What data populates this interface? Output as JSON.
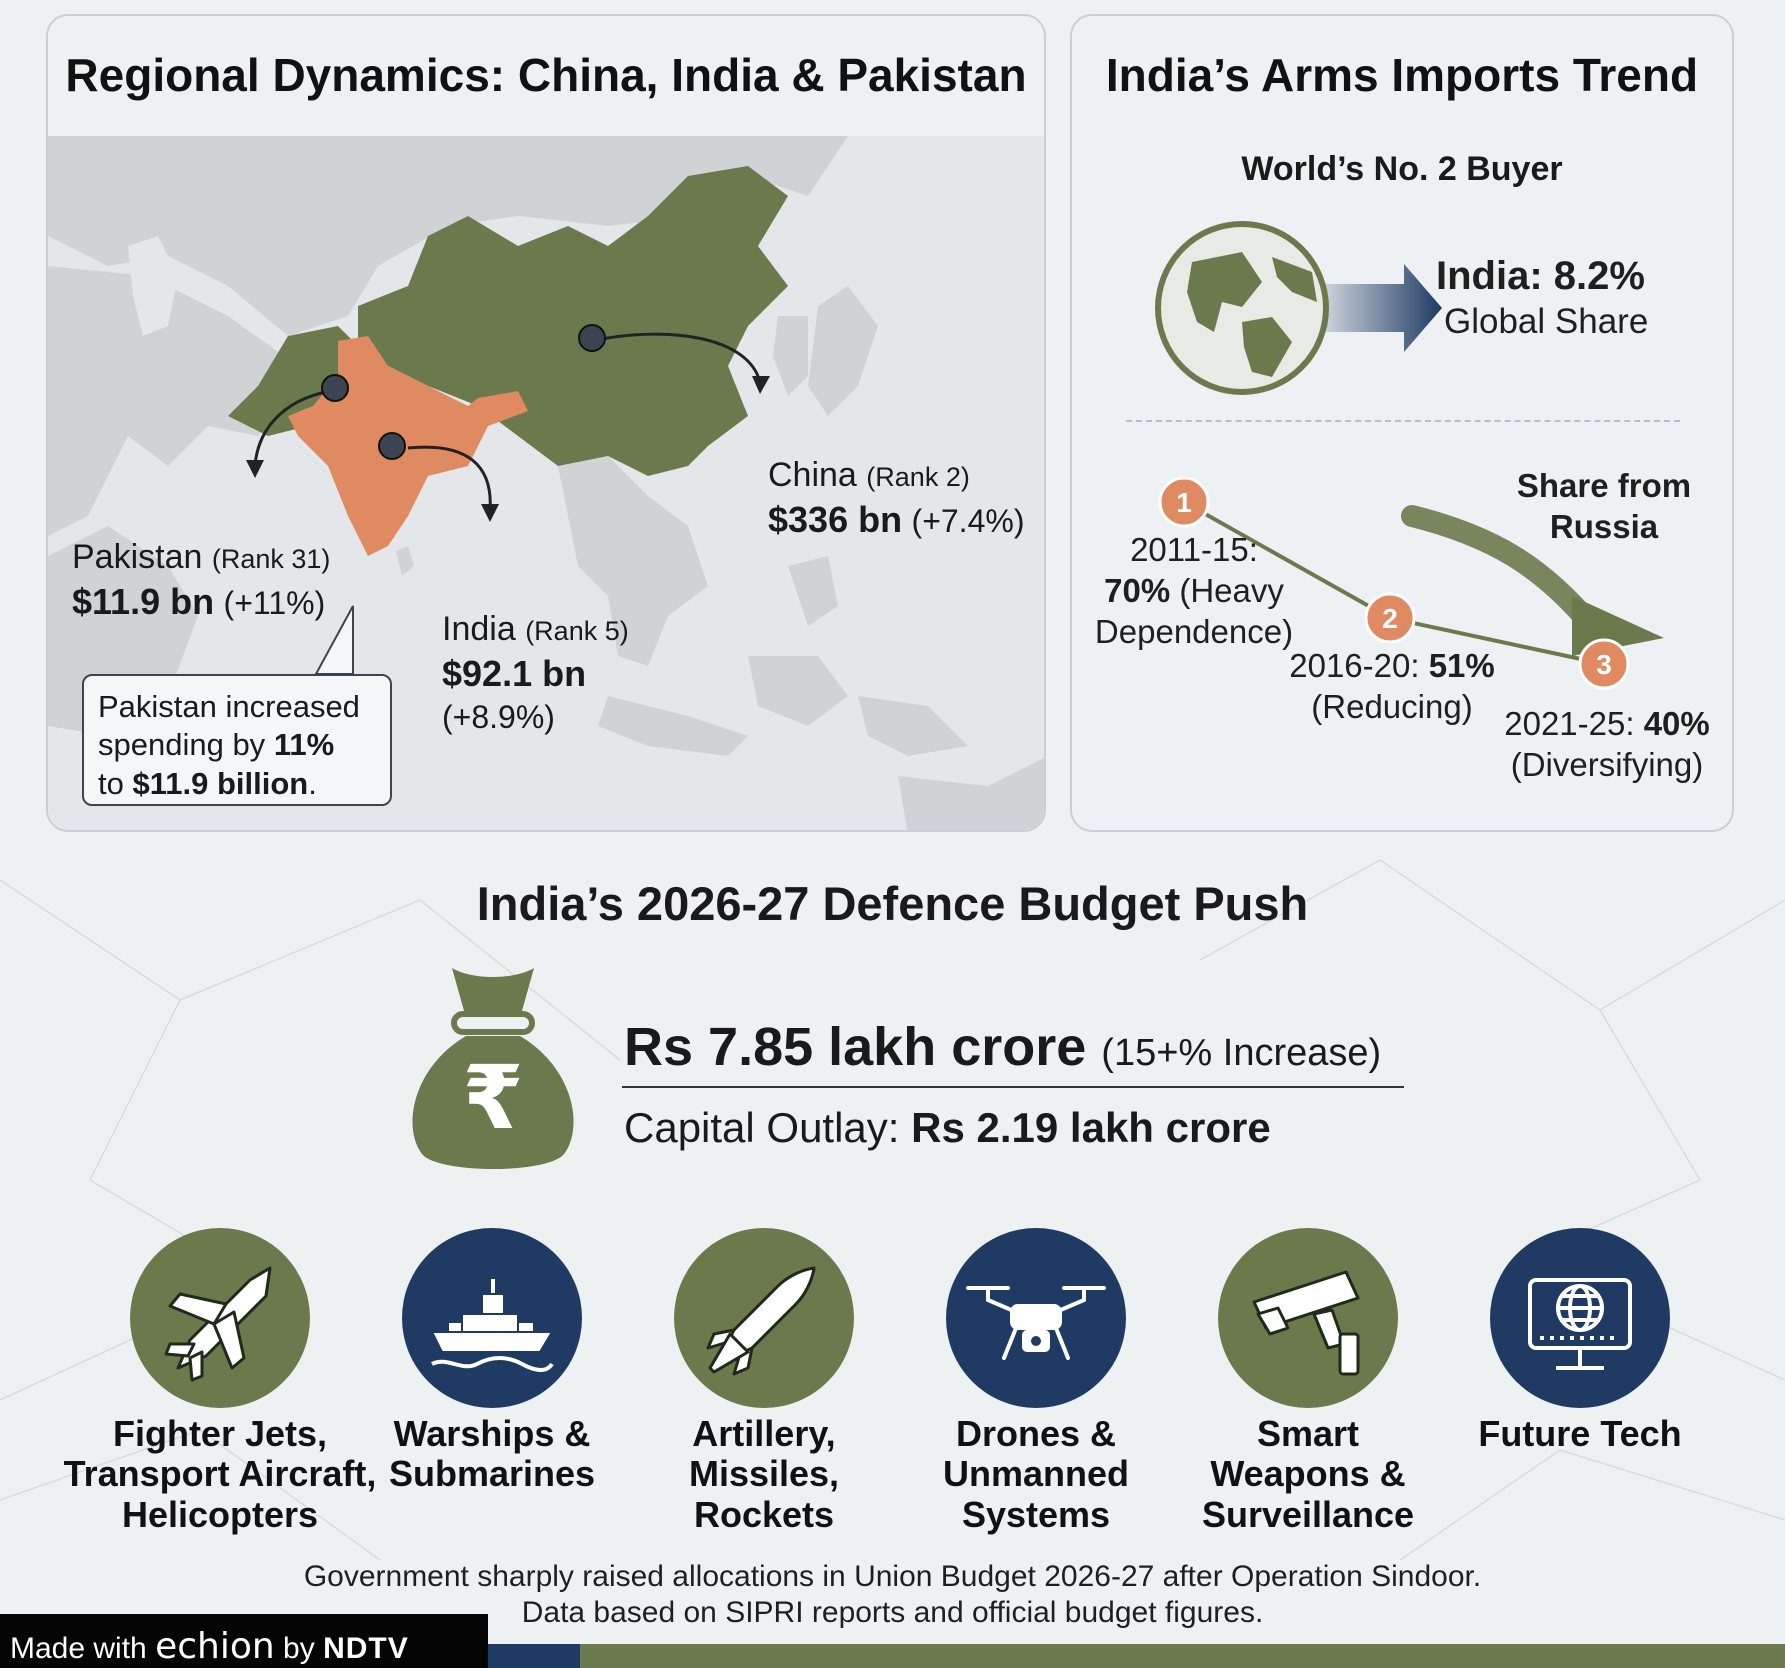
{
  "region_panel": {
    "title": "Regional Dynamics: China, India & Pakistan",
    "china": {
      "name": "China",
      "rank": "(Rank 2)",
      "amount": "$336 bn",
      "change": "(+7.4%)"
    },
    "india": {
      "name": "India",
      "rank": "(Rank 5)",
      "amount": "$92.1 bn",
      "change": "(+8.9%)"
    },
    "pakistan": {
      "name": "Pakistan",
      "rank": "(Rank 31)",
      "amount": "$11.9 bn",
      "change": "(+11%)"
    },
    "callout": {
      "line1": "Pakistan increased",
      "line2a": "spending by ",
      "line2b": "11%",
      "line3a": "to ",
      "line3b": "$11.9 billion",
      "line3c": "."
    },
    "colors": {
      "china": "#6b7a4d",
      "india": "#e08a62",
      "land": "#d2d5d8",
      "sea": "#e6e9ec"
    }
  },
  "trend_panel": {
    "title": "India’s Arms Imports Trend",
    "subtitle": "World’s No. 2 Buyer",
    "global_share_value": "India: 8.2%",
    "global_share_label": "Global Share",
    "russia_label": "Share from Russia",
    "russia_label_l1": "Share from",
    "russia_label_l2": "Russia",
    "steps": [
      {
        "number": "1",
        "period": "2011-15:",
        "value": "70%",
        "note": "(Heavy",
        "note2": "Dependence)"
      },
      {
        "number": "2",
        "period": "2016-20:",
        "value": "51%",
        "note": "(Reducing)"
      },
      {
        "number": "3",
        "period": "2021-25:",
        "value": "40%",
        "note": "(Diversifying)"
      }
    ]
  },
  "budget": {
    "title": "India’s 2026-27 Defence Budget Push",
    "amount": "Rs 7.85 lakh crore",
    "increase": "(15+% Increase)",
    "capital_label": "Capital Outlay:",
    "capital_value": "Rs 2.19 lakh crore",
    "currency_symbol": "₹",
    "categories": [
      {
        "icon": "fighter-jet-icon",
        "l1": "Fighter Jets,",
        "l2": "Transport Aircraft,",
        "l3": "Helicopters",
        "color": "#6b7a4d"
      },
      {
        "icon": "warship-icon",
        "l1": "Warships &",
        "l2": "Submarines",
        "l3": "",
        "color": "#1f3b63"
      },
      {
        "icon": "missile-icon",
        "l1": "Artillery,",
        "l2": "Missiles,",
        "l3": "Rockets",
        "color": "#6b7a4d"
      },
      {
        "icon": "drone-icon",
        "l1": "Drones &",
        "l2": "Unmanned",
        "l3": "Systems",
        "color": "#1f3b63"
      },
      {
        "icon": "surveillance-camera-icon",
        "l1": "Smart",
        "l2": "Weapons &",
        "l3": "Surveillance",
        "color": "#6b7a4d"
      },
      {
        "icon": "globe-monitor-icon",
        "l1": "Future Tech",
        "l2": "",
        "l3": "",
        "color": "#1f3b63"
      }
    ]
  },
  "footer": {
    "line1": "Government sharply raised allocations in Union Budget 2026-27 after Operation Sindoor.",
    "line2": "Data based on SIPRI reports and official budget figures.",
    "made_with": "Made with",
    "brand": "echion",
    "by": "by",
    "org": "NDTV"
  }
}
